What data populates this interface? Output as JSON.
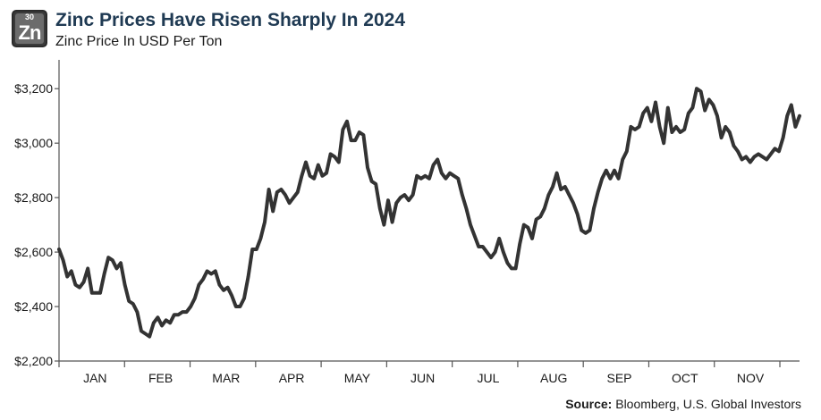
{
  "header": {
    "logo_number": "30",
    "logo_symbol": "Zn",
    "title": "Zinc Prices Have Risen Sharply In 2024",
    "subtitle": "Zinc Price In USD Per Ton"
  },
  "footer": {
    "source_label": "Source:",
    "source_text": "Bloomberg, U.S. Global Investors"
  },
  "colors": {
    "line": "#333333",
    "axis": "#555555",
    "title": "#1f3a53"
  },
  "chart_data": {
    "type": "line",
    "title": "Zinc Prices Have Risen Sharply In 2024",
    "subtitle": "Zinc Price In USD Per Ton",
    "xlabel": "",
    "ylabel": "",
    "ylim": [
      2200,
      3300
    ],
    "yticks": [
      2200,
      2400,
      2600,
      2800,
      3000,
      3200
    ],
    "ytick_labels": [
      "$2,200",
      "$2,400",
      "$2,600",
      "$2,800",
      "$3,000",
      "$3,200"
    ],
    "months": [
      "JAN",
      "FEB",
      "MAR",
      "APR",
      "MAY",
      "JUN",
      "JUL",
      "AUG",
      "SEP",
      "OCT",
      "NOV"
    ],
    "grid": false,
    "series": [
      {
        "values": [
          2610,
          2570,
          2510,
          2530,
          2480,
          2470,
          2490,
          2540,
          2450,
          2450,
          2450,
          2520,
          2580,
          2570,
          2540,
          2560,
          2480,
          2420,
          2410,
          2380,
          2310,
          2300,
          2290,
          2340,
          2360,
          2330,
          2350,
          2340,
          2370,
          2370,
          2380,
          2380,
          2400,
          2430,
          2480,
          2500,
          2530,
          2520,
          2530,
          2480,
          2460,
          2470,
          2440,
          2400,
          2400,
          2430,
          2510,
          2610,
          2610,
          2650,
          2710,
          2830,
          2750,
          2820,
          2830,
          2810,
          2780,
          2800,
          2820,
          2880,
          2930,
          2880,
          2870,
          2920,
          2880,
          2890,
          2960,
          2950,
          2930,
          3050,
          3080,
          3010,
          3010,
          3040,
          3030,
          2910,
          2860,
          2850,
          2760,
          2700,
          2790,
          2710,
          2780,
          2800,
          2810,
          2790,
          2810,
          2880,
          2870,
          2880,
          2870,
          2920,
          2940,
          2890,
          2870,
          2890,
          2880,
          2870,
          2810,
          2760,
          2700,
          2660,
          2620,
          2620,
          2600,
          2580,
          2600,
          2650,
          2600,
          2560,
          2540,
          2540,
          2630,
          2700,
          2690,
          2650,
          2720,
          2730,
          2760,
          2810,
          2840,
          2890,
          2830,
          2840,
          2810,
          2780,
          2740,
          2680,
          2670,
          2680,
          2760,
          2820,
          2870,
          2900,
          2870,
          2900,
          2870,
          2940,
          2970,
          3060,
          3050,
          3060,
          3110,
          3130,
          3080,
          3150,
          3060,
          3000,
          3130,
          3040,
          3060,
          3040,
          3050,
          3110,
          3130,
          3200,
          3190,
          3120,
          3160,
          3140,
          3100,
          3020,
          3060,
          3040,
          2990,
          2970,
          2940,
          2950,
          2930,
          2950,
          2960,
          2950,
          2940,
          2960,
          2980,
          2970,
          3020,
          3100,
          3140,
          3060,
          3100
        ]
      }
    ]
  }
}
